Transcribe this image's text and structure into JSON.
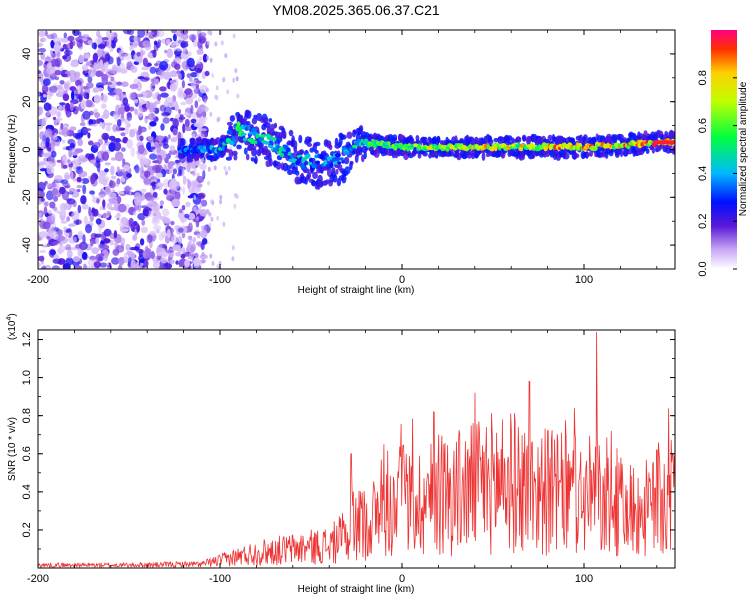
{
  "title": "YM08.2025.365.06.37.C21",
  "chart_data": [
    {
      "type": "heatmap",
      "xlabel": "Height of straight line (km)",
      "ylabel": "Frequency (Hz)",
      "xlim": [
        -200,
        150
      ],
      "ylim": [
        -50,
        50
      ],
      "x_ticks": [
        -200,
        -100,
        0,
        100
      ],
      "x_tick_labels": [
        "-200",
        "-100",
        "0",
        "100"
      ],
      "y_ticks": [
        -40,
        -20,
        0,
        20,
        40
      ],
      "y_tick_labels": [
        "-40",
        "-20",
        "0",
        "20",
        "40"
      ],
      "colorbar": {
        "label": "Normalized spectral amplitude",
        "range": [
          0,
          1
        ],
        "ticks": [
          0.0,
          0.2,
          0.4,
          0.6,
          0.8
        ],
        "tick_labels": [
          "0.0",
          "0.2",
          "0.4",
          "0.6",
          "0.8"
        ]
      },
      "ridge": {
        "x": [
          -120,
          -100,
          -90,
          -80,
          -70,
          -60,
          -50,
          -40,
          -32,
          -25,
          -10,
          0,
          20,
          40,
          60,
          80,
          100,
          120,
          150
        ],
        "freq": [
          0,
          0,
          8,
          5,
          2,
          -3,
          -6,
          -5,
          -3,
          3,
          2,
          1,
          1,
          1,
          1,
          1,
          1,
          2,
          3
        ],
        "amplitude": [
          0.35,
          0.45,
          0.55,
          0.5,
          0.5,
          0.45,
          0.45,
          0.4,
          0.4,
          0.55,
          0.6,
          0.65,
          0.75,
          0.8,
          0.8,
          0.85,
          0.9,
          0.85,
          1.0
        ]
      },
      "noise_region_x": [
        -200,
        -115
      ]
    },
    {
      "type": "line",
      "xlabel": "Height of straight line (km)",
      "ylabel": "SNR (10 * v/v)",
      "y_multiplier": "(x10",
      "y_multiplier_exp": "4",
      "y_multiplier_close": ")",
      "xlim": [
        -200,
        150
      ],
      "ylim": [
        0,
        1.25
      ],
      "x_ticks": [
        -200,
        -100,
        0,
        100
      ],
      "x_tick_labels": [
        "-200",
        "-100",
        "0",
        "100"
      ],
      "y_ticks": [
        0.2,
        0.4,
        0.6,
        0.8,
        1.0,
        1.2
      ],
      "y_tick_labels": [
        "0.2",
        "0.4",
        "0.6",
        "0.8",
        "1.0",
        "1.2"
      ],
      "series": [
        {
          "name": "SNR",
          "color": "#ee3333",
          "envelope_x": [
            -200,
            -150,
            -110,
            -100,
            -80,
            -60,
            -40,
            -28,
            -20,
            -10,
            0,
            10,
            20,
            30,
            40,
            50,
            60,
            70,
            80,
            90,
            100,
            107,
            110,
            120,
            130,
            140,
            150
          ],
          "envelope_mean": [
            0.015,
            0.015,
            0.02,
            0.04,
            0.08,
            0.1,
            0.12,
            0.18,
            0.25,
            0.28,
            0.32,
            0.35,
            0.38,
            0.4,
            0.42,
            0.45,
            0.45,
            0.42,
            0.4,
            0.38,
            0.36,
            0.4,
            0.32,
            0.3,
            0.3,
            0.32,
            0.38
          ],
          "spikes_x": [
            -28,
            -10,
            20,
            40,
            55,
            70,
            80,
            95,
            107,
            115,
            140
          ],
          "spikes_y": [
            0.6,
            0.65,
            0.7,
            0.92,
            0.78,
            0.98,
            0.72,
            0.7,
            1.24,
            0.72,
            0.62
          ]
        }
      ]
    }
  ]
}
